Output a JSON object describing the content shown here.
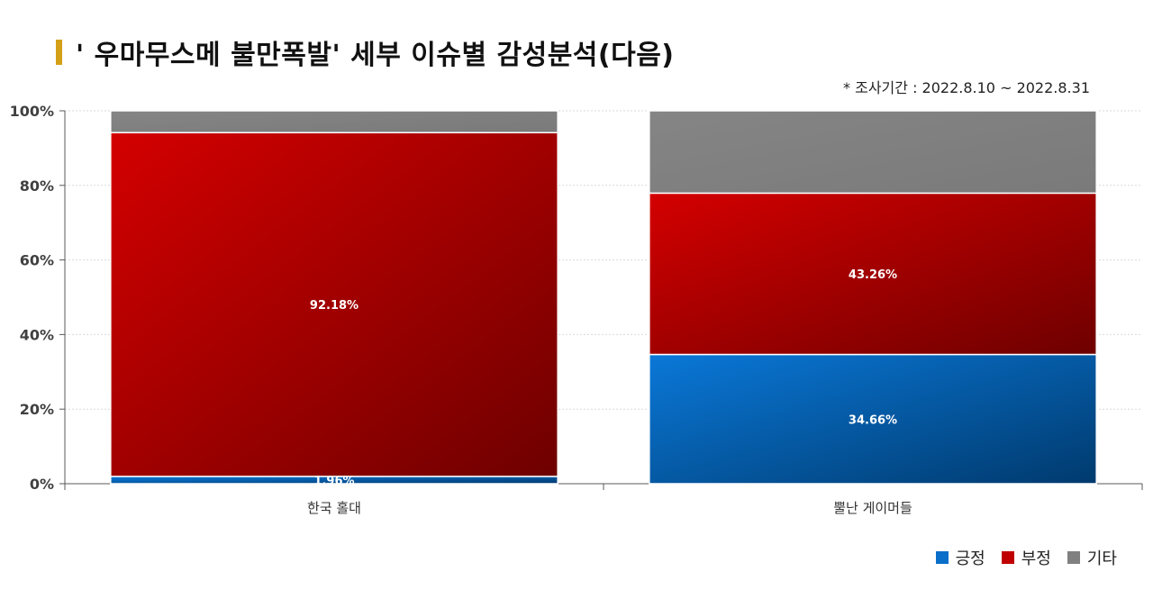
{
  "title": "' 우마무스메 불만폭발' 세부 이슈별 감성분석(다음)",
  "subtitle": "* 조사기간 : 2022.8.10 ~ 2022.8.31",
  "colors": {
    "positive": "#0a6fc9",
    "negative": "#c00000",
    "other": "#808080"
  },
  "chart_data": {
    "type": "bar",
    "stacked": true,
    "categories": [
      "한국 홀대",
      "뿔난 게이머들"
    ],
    "series": [
      {
        "name": "긍정",
        "values": [
          1.96,
          34.66
        ],
        "labels": [
          "1.96%",
          "34.66%"
        ]
      },
      {
        "name": "부정",
        "values": [
          92.18,
          43.26
        ],
        "labels": [
          "92.18%",
          "43.26%"
        ]
      },
      {
        "name": "기타",
        "values": [
          5.86,
          22.08
        ],
        "labels": [
          "",
          ""
        ]
      }
    ],
    "ylim": [
      0,
      100
    ],
    "yticks": [
      "0%",
      "20%",
      "40%",
      "60%",
      "80%",
      "100%"
    ],
    "grid": true,
    "legend_position": "bottom-right"
  }
}
